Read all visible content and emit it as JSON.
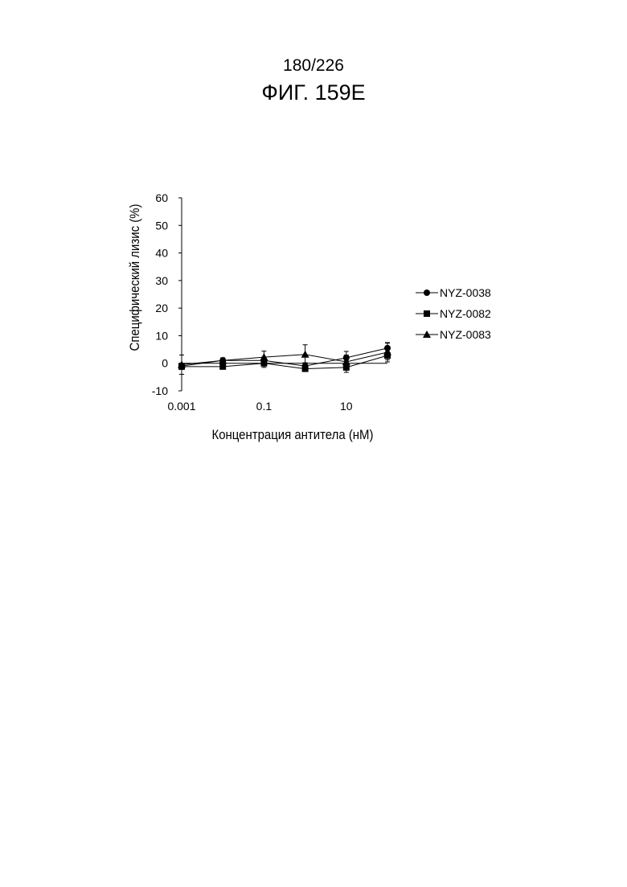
{
  "page": {
    "page_number": "180/226",
    "figure_title": "ФИГ. 159E"
  },
  "chart_data": {
    "type": "line",
    "title": "",
    "xlabel": "Концентрация антитела (нМ)",
    "ylabel": "Специфический лизис (%)",
    "x_scale": "log",
    "x_ticks": [
      "0.001",
      "0.1",
      "10"
    ],
    "x_tick_values": [
      0.001,
      0.1,
      10
    ],
    "xlim": [
      0.001,
      100
    ],
    "y_ticks": [
      "-10",
      "0",
      "10",
      "20",
      "30",
      "40",
      "50",
      "60"
    ],
    "ylim": [
      -10,
      60
    ],
    "grid": false,
    "legend_position": "right",
    "x": [
      0.001,
      0.01,
      0.1,
      1,
      10,
      100
    ],
    "series": [
      {
        "name": "NYZ-0038",
        "marker": "circle",
        "values": [
          -1.0,
          1.0,
          1.0,
          -1.0,
          2.0,
          5.5
        ],
        "errors": [
          0.8,
          0.8,
          1.2,
          1.2,
          1.0,
          1.8
        ]
      },
      {
        "name": "NYZ-0082",
        "marker": "square",
        "values": [
          -1.2,
          -1.2,
          0.0,
          -2.0,
          -1.5,
          2.8
        ],
        "errors": [
          1.0,
          0.8,
          1.5,
          1.0,
          1.0,
          1.5
        ]
      },
      {
        "name": "NYZ-0083",
        "marker": "triangle",
        "values": [
          -0.5,
          1.0,
          2.2,
          3.2,
          0.5,
          4.0
        ],
        "errors": [
          3.5,
          1.0,
          2.2,
          3.5,
          3.8,
          3.5
        ]
      }
    ]
  }
}
